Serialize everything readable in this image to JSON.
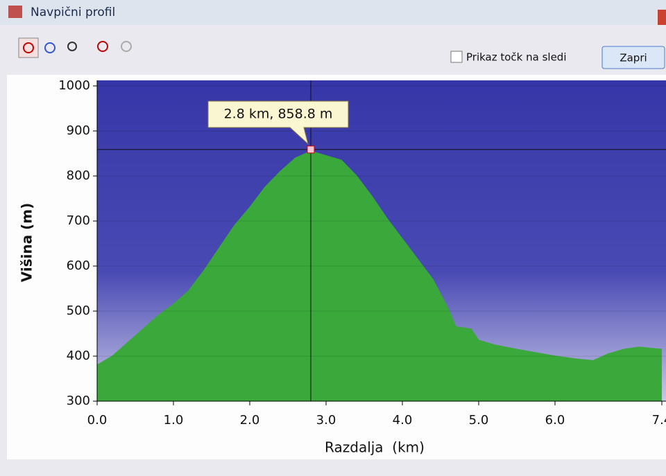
{
  "window": {
    "title": "Navpični profil"
  },
  "toolbar": {
    "checkbox_label": "Prikaz točk na sledi",
    "button_label": "Zapri"
  },
  "chart_data": {
    "type": "area",
    "x_label": "Razdalja  (km)",
    "y_label": "Višina (m)",
    "tooltip": "2.8 km, 858.8 m",
    "crosshair": {
      "x": 2.8,
      "y": 858.8
    },
    "x": [
      0,
      0.2,
      0.5,
      0.8,
      1.0,
      1.2,
      1.4,
      1.6,
      1.8,
      2.0,
      2.2,
      2.4,
      2.6,
      2.8,
      3.0,
      3.2,
      3.4,
      3.6,
      3.8,
      4.0,
      4.2,
      4.4,
      4.6,
      4.7,
      4.9,
      5.0,
      5.2,
      5.5,
      6.0,
      6.3,
      6.5,
      6.7,
      6.9,
      7.1,
      7.4
    ],
    "series": [
      {
        "name": "Višina",
        "color": "#3aa83a",
        "values": [
          380,
          400,
          445,
          490,
          515,
          545,
          590,
          640,
          690,
          730,
          775,
          810,
          840,
          855,
          845,
          835,
          800,
          755,
          705,
          660,
          615,
          570,
          505,
          465,
          460,
          435,
          425,
          415,
          400,
          393,
          390,
          405,
          415,
          420,
          415
        ]
      }
    ],
    "xlim": [
      0,
      7.4
    ],
    "xticks": [
      {
        "value": 0,
        "label": "0.0"
      },
      {
        "value": 1,
        "label": "1.0"
      },
      {
        "value": 2,
        "label": "2.0"
      },
      {
        "value": 3,
        "label": "3.0"
      },
      {
        "value": 4,
        "label": "4.0"
      },
      {
        "value": 5,
        "label": "5.0"
      },
      {
        "value": 6,
        "label": "6.0"
      },
      7.4
    ],
    "ylim": [
      300,
      1000
    ],
    "yticks": [
      300,
      400,
      500,
      600,
      700,
      800,
      900,
      1000
    ],
    "grid": true,
    "background": "#3c3cae"
  }
}
